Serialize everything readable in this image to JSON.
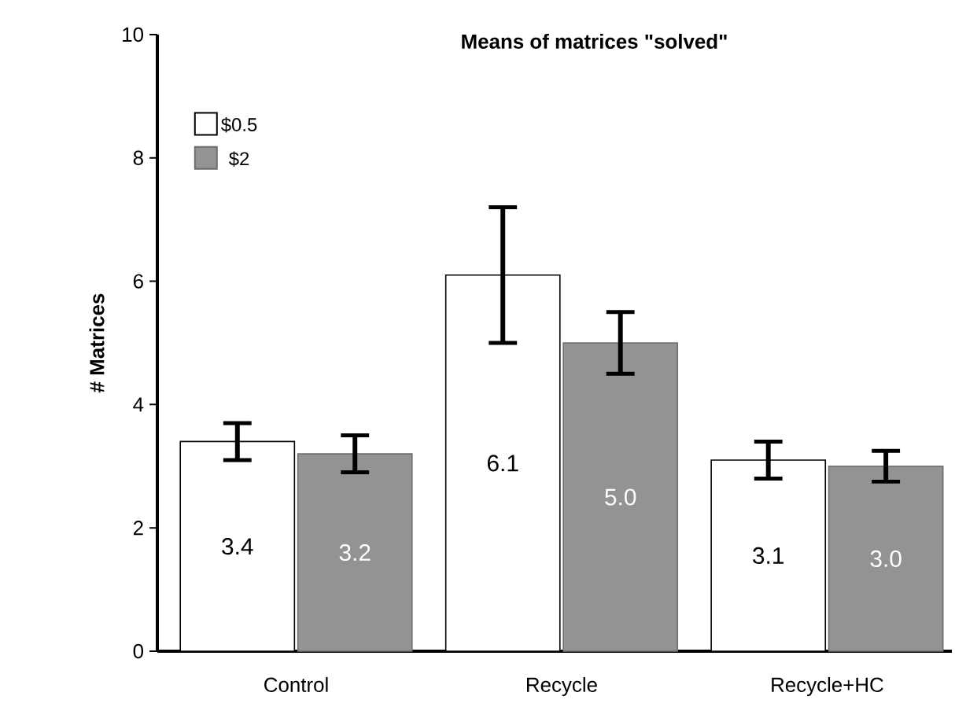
{
  "chart_data": {
    "type": "bar",
    "title": "Means of matrices \"solved\"",
    "ylabel": "# Matrices",
    "categories": [
      "Control",
      "Recycle",
      "Recycle+HC"
    ],
    "series": [
      {
        "name": "$0.5",
        "color": "#ffffff",
        "values": [
          3.4,
          6.1,
          3.1
        ],
        "errors": [
          0.3,
          1.1,
          0.3
        ],
        "value_labels": [
          "3.4",
          "6.1",
          "3.1"
        ]
      },
      {
        "name": "$2",
        "color": "#939393",
        "values": [
          3.2,
          5.0,
          3.0
        ],
        "errors": [
          0.3,
          0.5,
          0.25
        ],
        "value_labels": [
          "3.2",
          "5.0",
          "3.0"
        ]
      }
    ],
    "ylim": [
      0,
      10
    ],
    "yticks": [
      0,
      2,
      4,
      6,
      8,
      10
    ],
    "legend": "top left",
    "grid": false
  }
}
